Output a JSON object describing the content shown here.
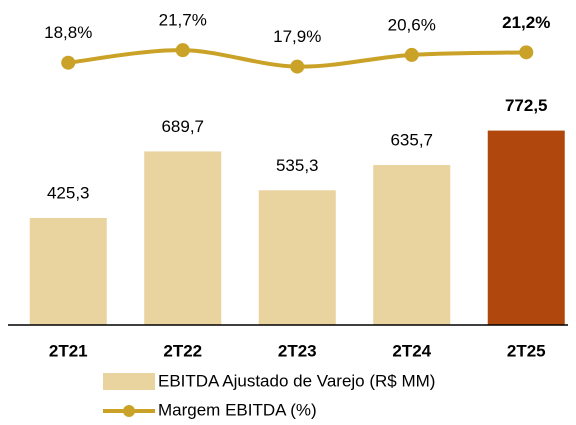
{
  "chart_data": {
    "type": "bar_line",
    "categories": [
      "2T21",
      "2T22",
      "2T23",
      "2T24",
      "2T25"
    ],
    "series": [
      {
        "name": "EBITDA Ajustado de Varejo (R$ MM)",
        "type": "bar",
        "colors": [
          "#e9d49f",
          "#e9d49f",
          "#e9d49f",
          "#e9d49f",
          "#b0470c"
        ],
        "values": [
          425.3,
          689.7,
          535.3,
          635.7,
          772.5
        ],
        "value_labels": [
          "425,3",
          "689,7",
          "535,3",
          "635,7",
          "772,5"
        ]
      },
      {
        "name": "Margem EBITDA (%)",
        "type": "line",
        "axis": "y2",
        "color": "#c9a227",
        "values": [
          18.8,
          21.7,
          17.9,
          20.6,
          21.2
        ],
        "value_labels": [
          "18,8%",
          "21,7%",
          "17,9%",
          "20,6%",
          "21,2%"
        ]
      }
    ],
    "ylim": [
      0,
      1200
    ],
    "y2lim": [
      -42,
      28
    ]
  }
}
